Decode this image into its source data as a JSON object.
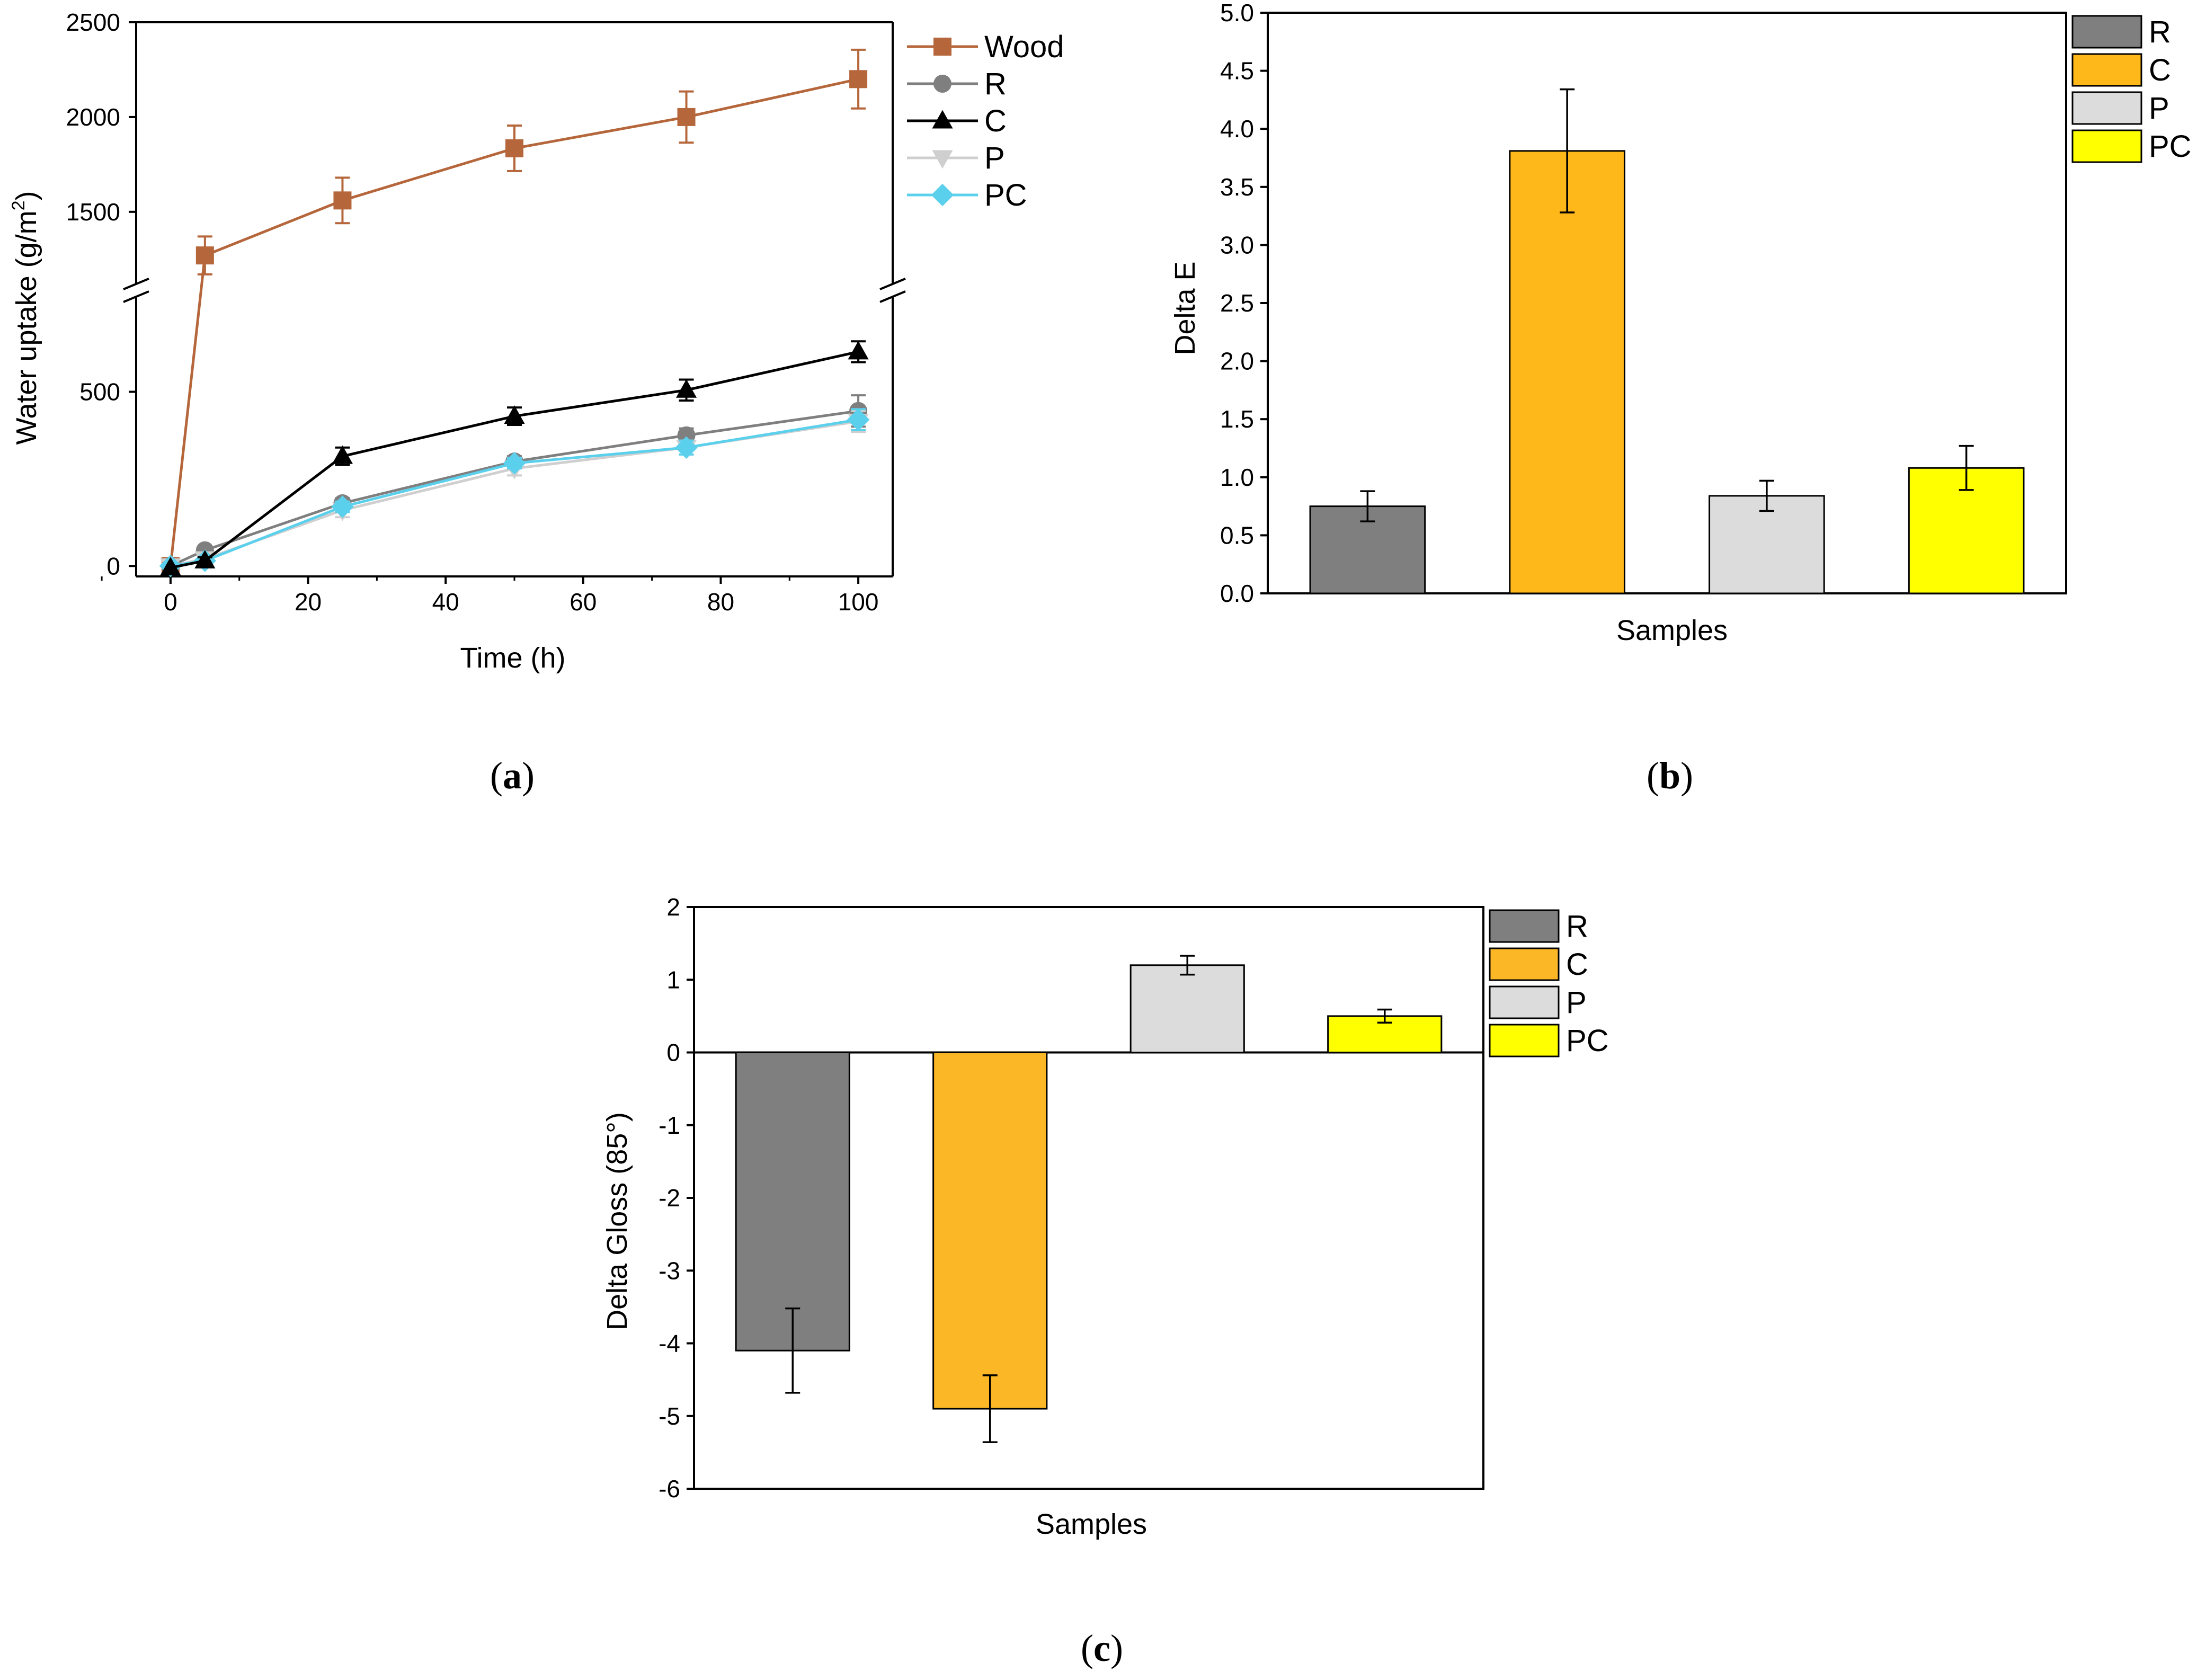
{
  "captions": {
    "a_open": "(",
    "a_letter": "a",
    "a_close": ")",
    "b_open": "(",
    "b_letter": "b",
    "b_close": ")",
    "c_open": "(",
    "c_letter": "c",
    "c_close": ")"
  },
  "chart_data": [
    {
      "id": "a",
      "type": "line",
      "xlabel": "Time (h)",
      "ylabel_main": "Water uptake (g/m",
      "ylabel_sup": "2",
      "ylabel_end": ")",
      "xlim": [
        -5,
        105
      ],
      "xticks": [
        0,
        20,
        40,
        60,
        80,
        100
      ],
      "y_lower": {
        "range": [
          -30,
          770
        ],
        "ticks": [
          0,
          500
        ]
      },
      "y_upper": {
        "range": [
          1125,
          2500
        ],
        "ticks": [
          1500,
          2000,
          2500
        ]
      },
      "axis_break": true,
      "legend_placement": "right-outside-top",
      "x": [
        0,
        5,
        25,
        50,
        75,
        100
      ],
      "series": [
        {
          "name": "Wood",
          "color": "#b5663a",
          "marker": "square",
          "values": [
            0,
            1270,
            1560,
            1835,
            2000,
            2200
          ],
          "errors": [
            0,
            100,
            120,
            120,
            135,
            155
          ]
        },
        {
          "name": "R",
          "color": "#7f7f7f",
          "marker": "circle",
          "values": [
            0,
            45,
            180,
            300,
            375,
            445
          ],
          "errors": [
            0,
            10,
            15,
            15,
            20,
            45
          ]
        },
        {
          "name": "C",
          "color": "#000000",
          "marker": "triangle-up",
          "values": [
            -5,
            15,
            315,
            430,
            505,
            615
          ],
          "errors": [
            0,
            10,
            25,
            25,
            30,
            30
          ]
        },
        {
          "name": "P",
          "color": "#cfcfcf",
          "marker": "triangle-down",
          "values": [
            0,
            20,
            160,
            280,
            340,
            415
          ],
          "errors": [
            0,
            10,
            20,
            20,
            20,
            30
          ]
        },
        {
          "name": "PC",
          "color": "#5bd0ec",
          "marker": "diamond",
          "values": [
            0,
            15,
            170,
            295,
            340,
            420
          ],
          "errors": [
            0,
            10,
            15,
            15,
            20,
            30
          ]
        }
      ]
    },
    {
      "id": "b",
      "type": "bar",
      "xlabel": "Samples",
      "ylabel": "Delta E",
      "ylim": [
        0,
        5
      ],
      "yticks": [
        "0.0",
        "0.5",
        "1.0",
        "1.5",
        "2.0",
        "2.5",
        "3.0",
        "3.5",
        "4.0",
        "4.5",
        "5.0"
      ],
      "categories": [
        "R",
        "C",
        "P",
        "PC"
      ],
      "values": [
        0.75,
        3.81,
        0.84,
        1.08
      ],
      "errors": [
        0.13,
        0.53,
        0.13,
        0.19
      ],
      "colors": [
        "#7f7f7f",
        "#ffb81a",
        "#dcdcdc",
        "#ffff00"
      ],
      "legend_placement": "right-outside-top"
    },
    {
      "id": "c",
      "type": "bar",
      "xlabel": "Samples",
      "ylabel": "Delta Gloss (85°)",
      "ylim": [
        -6,
        2
      ],
      "yticks": [
        "2",
        "1",
        "0",
        "-1",
        "-2",
        "-3",
        "-4",
        "-5",
        "-6"
      ],
      "categories": [
        "R",
        "C",
        "P",
        "PC"
      ],
      "values": [
        -4.1,
        -4.9,
        1.2,
        0.5
      ],
      "errors": [
        0.58,
        0.46,
        0.13,
        0.09
      ],
      "colors": [
        "#7f7f7f",
        "#fbb726",
        "#dcdcdc",
        "#ffff00"
      ],
      "legend_placement": "right-outside-top"
    }
  ]
}
